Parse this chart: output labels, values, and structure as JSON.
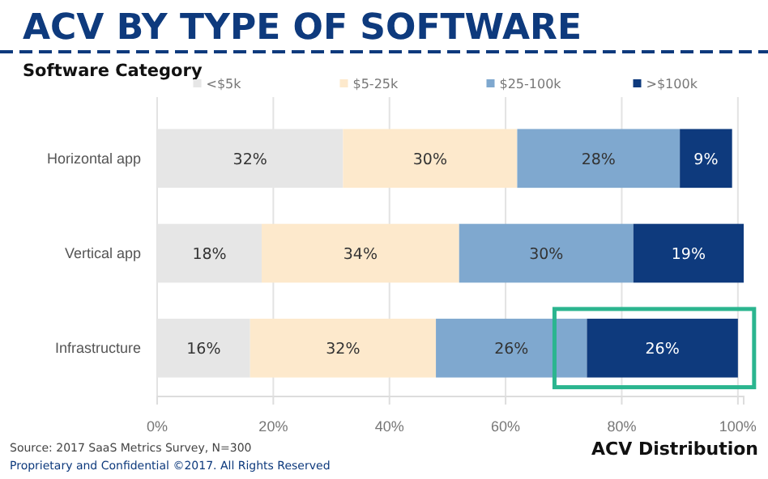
{
  "chart_data": {
    "type": "bar",
    "orientation": "horizontal",
    "stacked": true,
    "title": "ACV BY TYPE OF SOFTWARE",
    "ylabel": "Software Category",
    "xlabel": "ACV Distribution",
    "categories": [
      "Horizontal app",
      "Vertical app",
      "Infrastructure"
    ],
    "series": [
      {
        "name": "<$5k",
        "color": "#e6e6e6",
        "values": [
          32,
          18,
          16
        ],
        "value_labels": [
          "32%",
          "18%",
          "16%"
        ]
      },
      {
        "name": "$5-25k",
        "color": "#fde9cc",
        "values": [
          30,
          34,
          32
        ],
        "value_labels": [
          "30%",
          "34%",
          "32%"
        ]
      },
      {
        "name": "$25-100k",
        "color": "#7fa8cf",
        "values": [
          28,
          30,
          26
        ],
        "value_labels": [
          "28%",
          "30%",
          "26%"
        ]
      },
      {
        "name": ">$100k",
        "color": "#0e3a7d",
        "values": [
          9,
          19,
          26
        ],
        "value_labels": [
          "9%",
          "19%",
          "26%"
        ]
      }
    ],
    "xlim": [
      0,
      101
    ],
    "xticks": [
      {
        "value": 0,
        "label": "0%"
      },
      {
        "value": 20,
        "label": "20%"
      },
      {
        "value": 40,
        "label": "40%"
      },
      {
        "value": 60,
        "label": "60%"
      },
      {
        "value": 80,
        "label": "80%"
      },
      {
        "value": 100,
        "label": "100%"
      }
    ],
    "grid": "x",
    "legend": "top",
    "annotations": [
      "Source: 2017 SaaS Metrics Survey, N=300",
      "Proprietary and Confidential ©2017. All Rights Reserved"
    ]
  }
}
